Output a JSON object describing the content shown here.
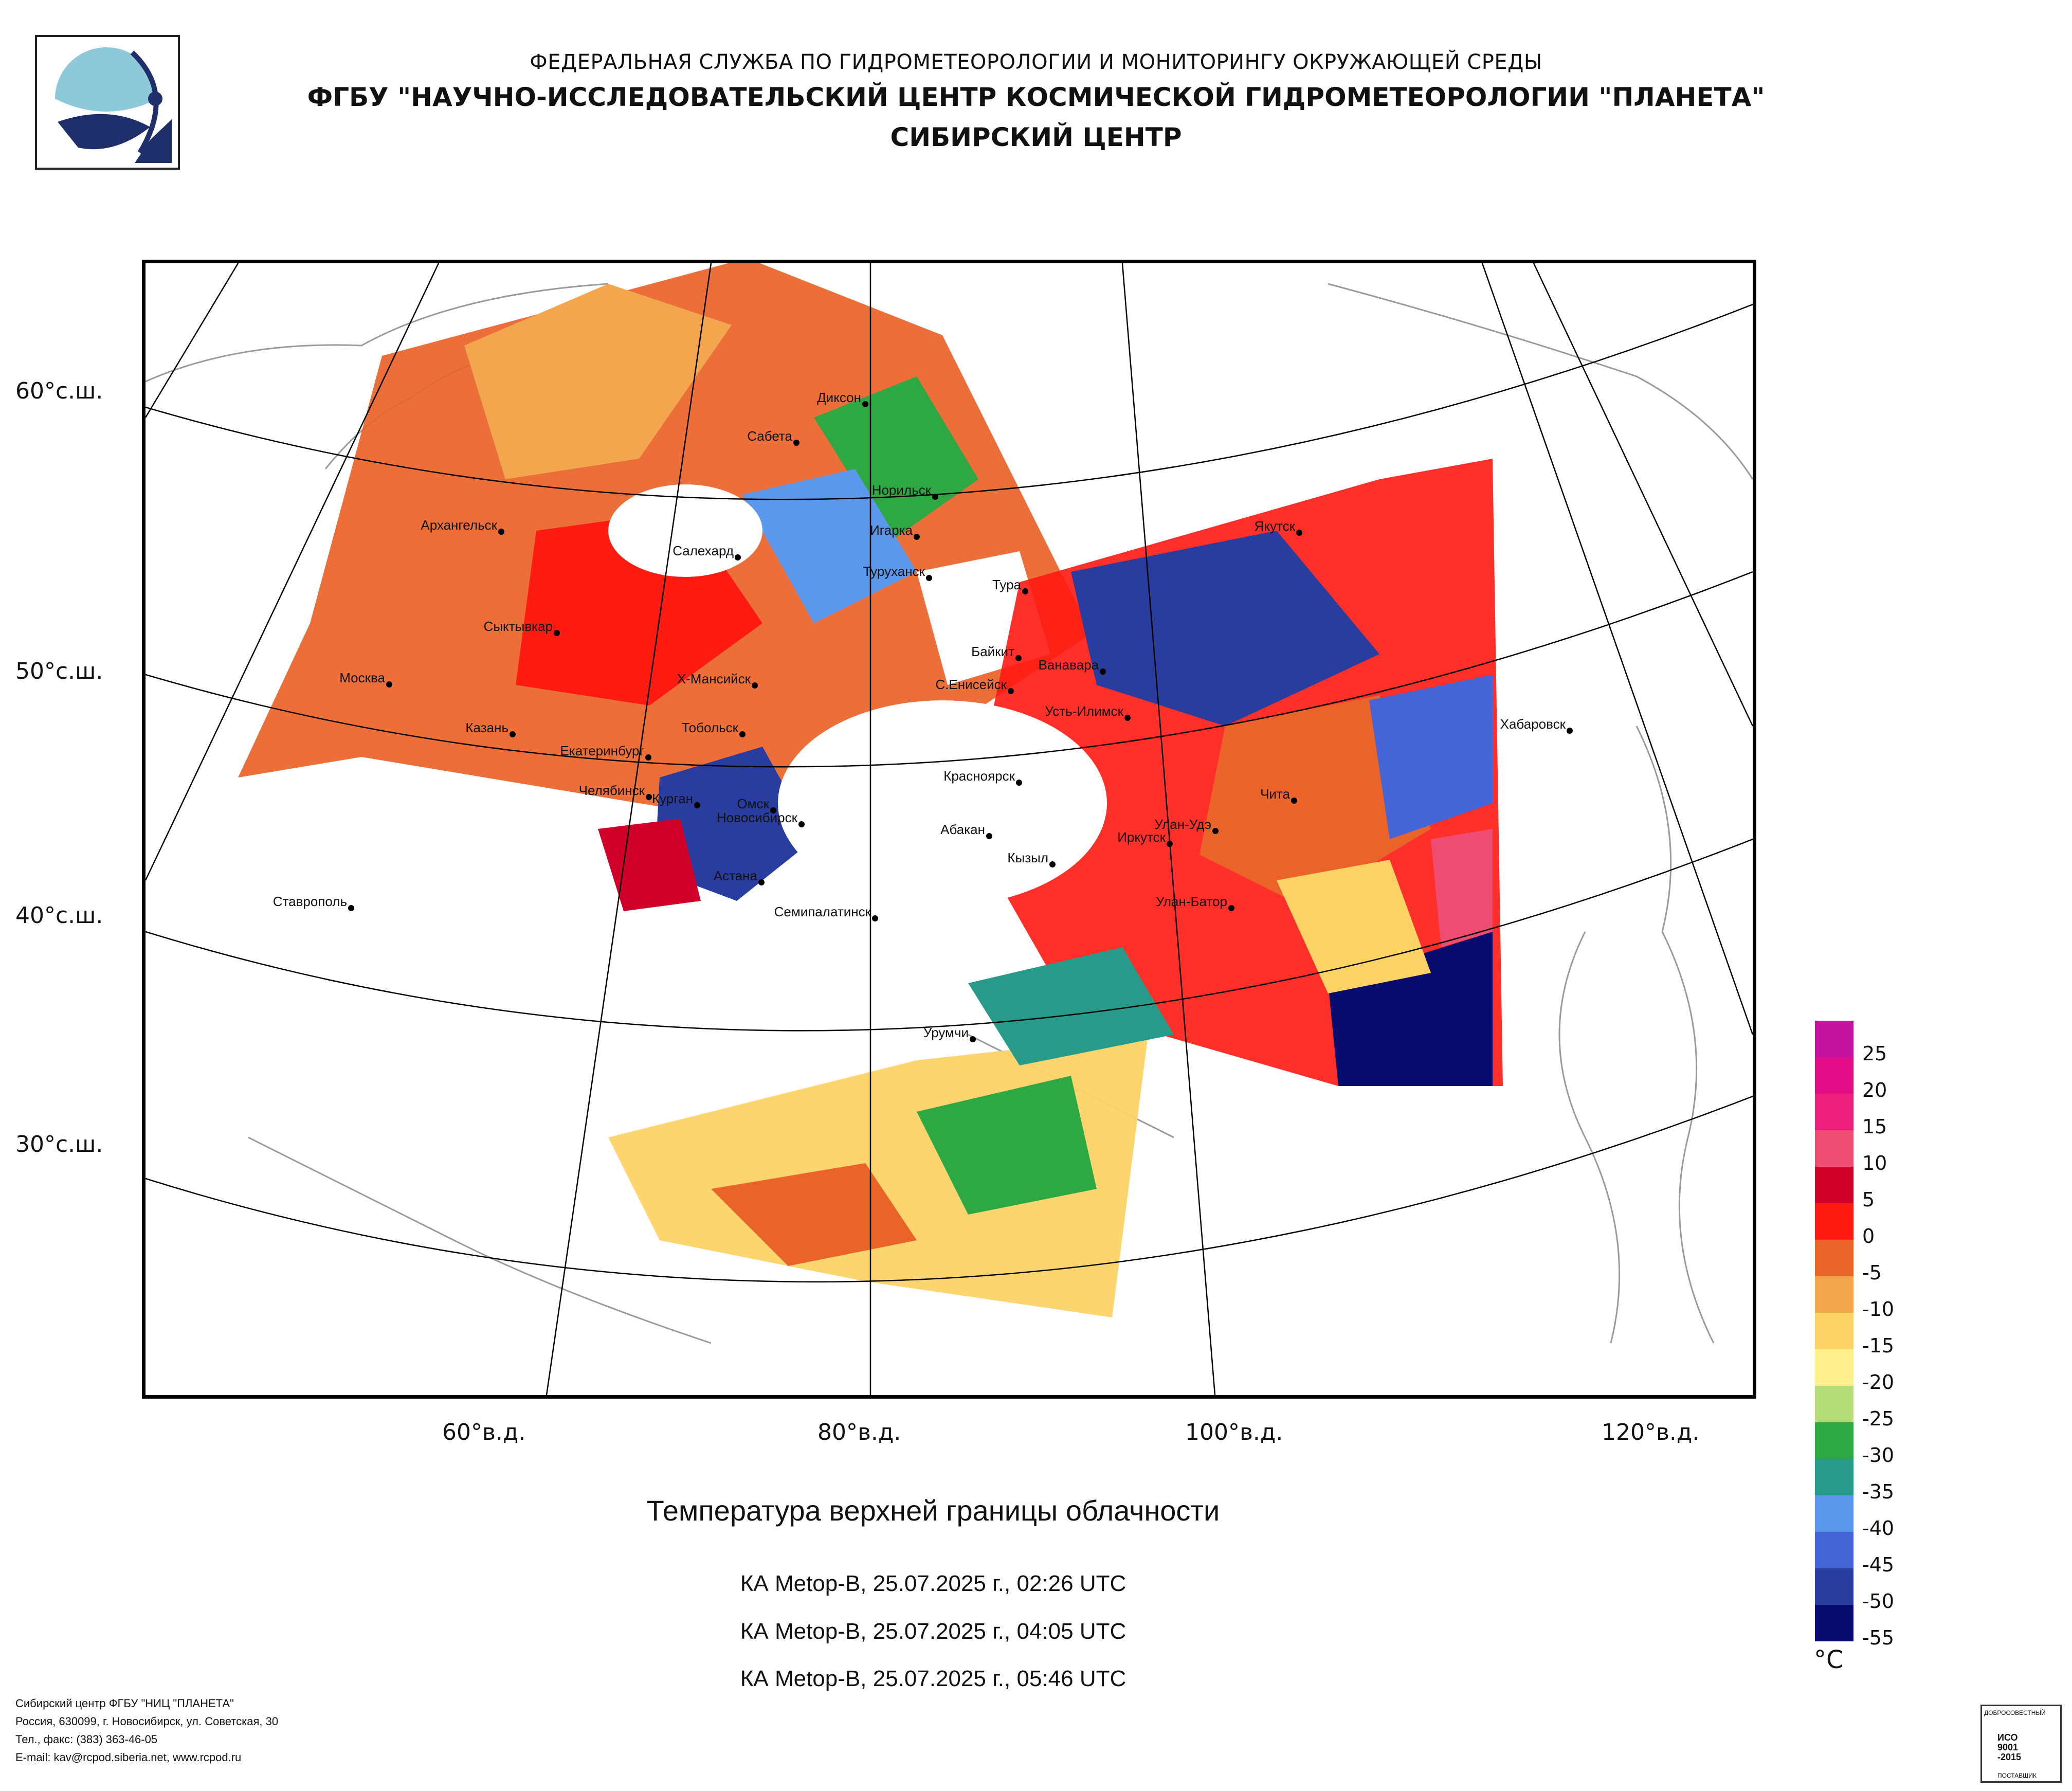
{
  "header": {
    "line1": "ФЕДЕРАЛЬНАЯ СЛУЖБА ПО ГИДРОМЕТЕОРОЛОГИИ И МОНИТОРИНГУ ОКРУЖАЮЩЕЙ СРЕДЫ",
    "line2": "ФГБУ \"НАУЧНО-ИССЛЕДОВАТЕЛЬСКИЙ ЦЕНТР КОСМИЧЕСКОЙ ГИДРОМЕТЕОРОЛОГИИ \"ПЛАНЕТА\"",
    "line3": "СИБИРСКИЙ ЦЕНТР"
  },
  "logo": {
    "icon": "planeta-logo-icon",
    "colors": [
      "#8ec9d9",
      "#1f2f6b"
    ]
  },
  "map": {
    "lat_labels": [
      "60°с.ш.",
      "50°с.ш.",
      "40°с.ш.",
      "30°с.ш."
    ],
    "lon_labels": [
      "60°в.д.",
      "80°в.д.",
      "100°в.д.",
      "120°в.д."
    ],
    "cities": [
      "Диксон",
      "Сабета",
      "Норильск",
      "Архангельск",
      "Игарка",
      "Салехард",
      "Туруханск",
      "Тура",
      "Якутск",
      "Сыктывкар",
      "Байкит",
      "Ванавара",
      "Х-Мансийск",
      "С.Енисейск",
      "Москва",
      "Усть-Илимск",
      "Казань",
      "Тобольск",
      "Хабаровск",
      "Екатеринбург",
      "Красноярск",
      "Челябинск",
      "Курган",
      "Чита",
      "Омск",
      "Новосибирск",
      "Абакан",
      "Улан-Удэ",
      "Иркутск",
      "Кызыл",
      "Астана",
      "Ставрополь",
      "Семипалатинск",
      "Улан-Батор",
      "Урумчи"
    ]
  },
  "legend": {
    "title": "°C",
    "ticks": [
      "25",
      "20",
      "15",
      "10",
      "5",
      "0",
      "-5",
      "-10",
      "-15",
      "-20",
      "-25",
      "-30",
      "-35",
      "-40",
      "-45",
      "-50",
      "-55"
    ],
    "colors": [
      "#c4129e",
      "#e30b86",
      "#ee1f7c",
      "#ef4c74",
      "#d0002a",
      "#ff1a12",
      "#ea6328",
      "#f3a64d",
      "#fdd366",
      "#fff08f",
      "#b5dd7a",
      "#2ea843",
      "#279a8a",
      "#5b97ea",
      "#4564d6",
      "#283d9d",
      "#070c6e"
    ]
  },
  "product": {
    "title": "Температура верхней границы облачности",
    "passes": [
      "КА Metop-B, 25.07.2025 г., 02:26 UTC",
      "КА Metop-B, 25.07.2025 г., 04:05 UTC",
      "КА Metop-B, 25.07.2025 г., 05:46 UTC"
    ]
  },
  "footer": {
    "org": "Сибирский центр ФГБУ \"НИЦ \"ПЛАНЕТА\"",
    "address": "Россия, 630099, г. Новосибирск, ул. Советская, 30",
    "phone": "Тел., факс: (383) 363-46-05",
    "email": "E-mail: kav@rcpod.siberia.net, www.rcpod.ru"
  },
  "certificate": {
    "top": "ДОБРОСОВЕСТНЫЙ",
    "line1": "ИСО",
    "line2": "9001",
    "line3": "-2015",
    "bottom": "ПОСТАВЩИК"
  }
}
